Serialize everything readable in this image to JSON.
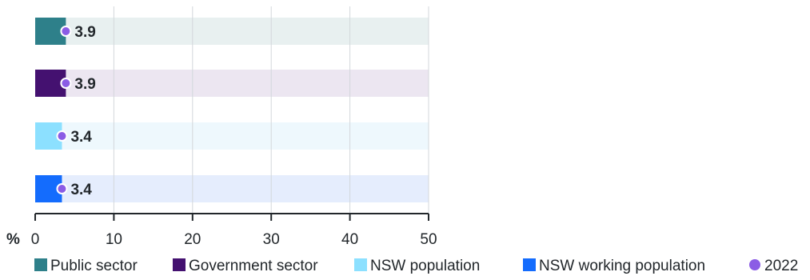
{
  "chart_data": {
    "type": "bar",
    "orientation": "horizontal",
    "unit_label": "%",
    "xlim": [
      0,
      50
    ],
    "xticks": [
      0,
      10,
      20,
      30,
      40,
      50
    ],
    "grid": true,
    "legend_position": "bottom",
    "categories": [
      "Public sector",
      "Government sector",
      "NSW population",
      "NSW working population"
    ],
    "series": [
      {
        "name": "2022",
        "values": [
          3.9,
          3.9,
          3.4,
          3.4
        ],
        "value_labels": [
          "3.9",
          "3.9",
          "3.4",
          "3.4"
        ]
      }
    ],
    "colors": {
      "bars": [
        "#2e808a",
        "#441170",
        "#8ce0ff",
        "#146cfd"
      ],
      "tracks": [
        "#e8f0f0",
        "#ece6f1",
        "#eef8fd",
        "#e5edfd"
      ],
      "marker": "#8b5ce5"
    },
    "legend": [
      {
        "label": "Public sector",
        "color": "#2e808a",
        "shape": "square"
      },
      {
        "label": "Government sector",
        "color": "#441170",
        "shape": "square"
      },
      {
        "label": "NSW population",
        "color": "#8ce0ff",
        "shape": "square"
      },
      {
        "label": "NSW working population",
        "color": "#146cfd",
        "shape": "square"
      },
      {
        "label": "2022",
        "color": "#8b5ce5",
        "shape": "circle"
      }
    ]
  }
}
